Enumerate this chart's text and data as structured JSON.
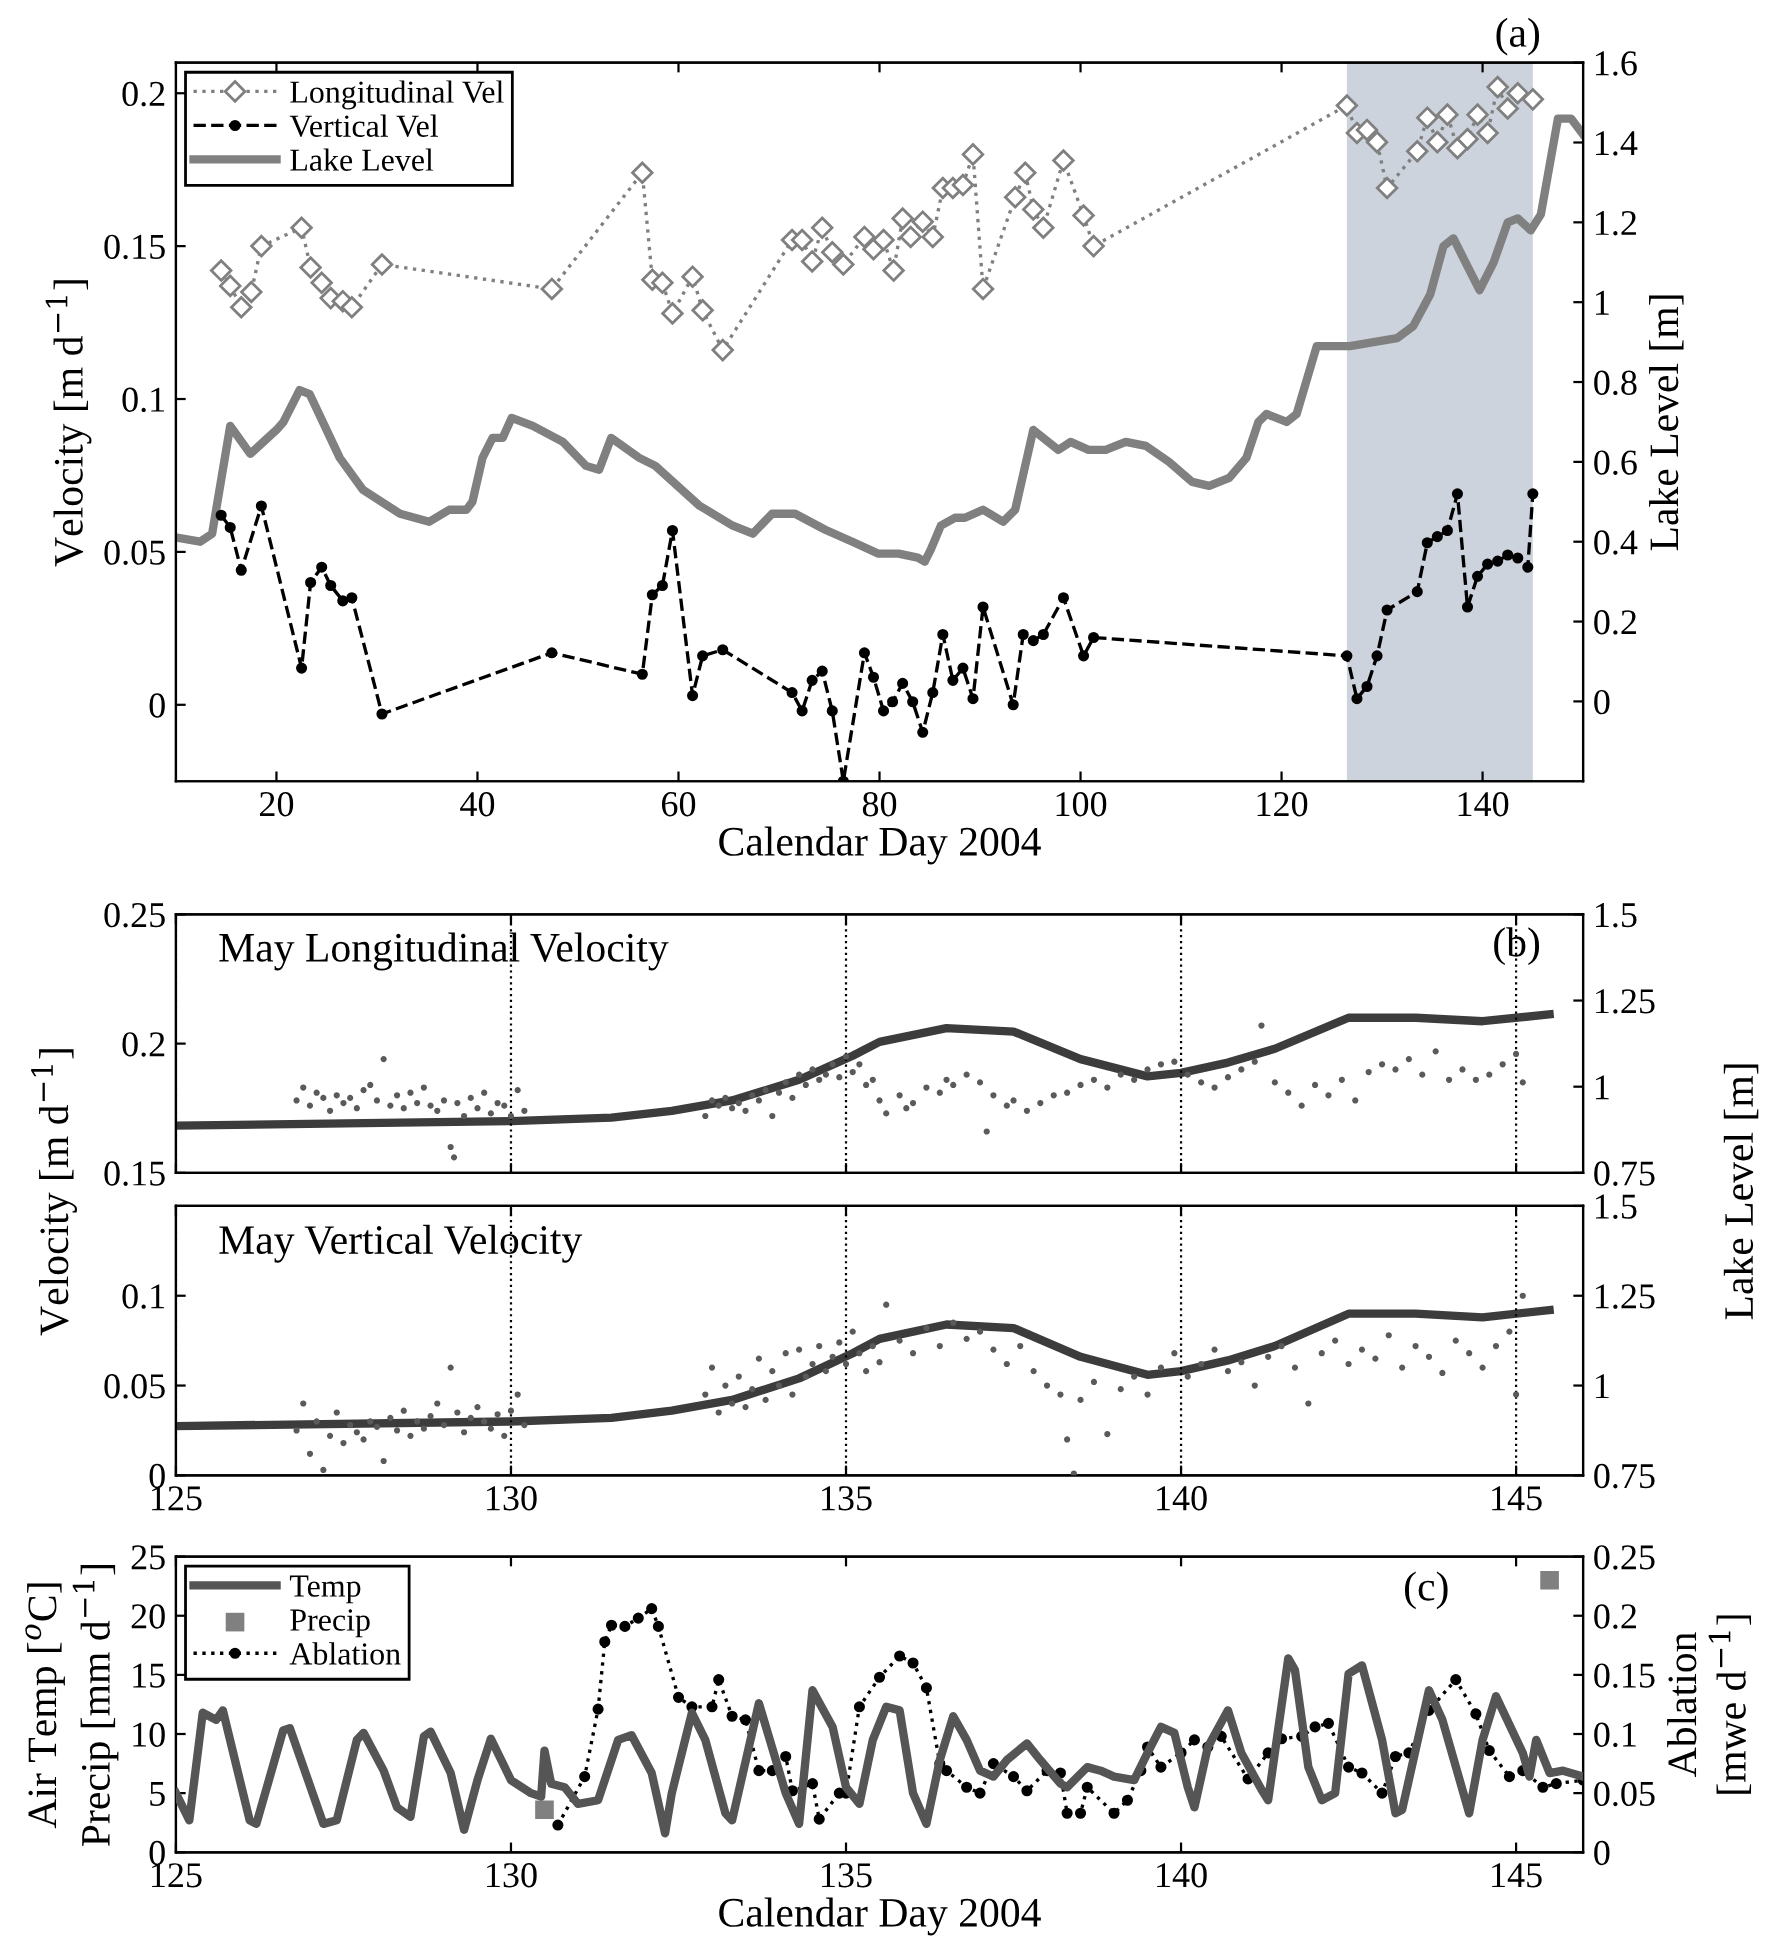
{
  "chart_data": [
    {
      "type": "line",
      "xlabel": "Calendar Day 2004",
      "ylabel": "Velocity [m d$^{−1}$]",
      "y2label": "Lake Level [m]",
      "annotations": [
        "(a)"
      ],
      "legend": "top left",
      "grid": false,
      "xlim": [
        10,
        150
      ],
      "xticks": [
        20,
        40,
        60,
        80,
        100,
        120,
        140
      ],
      "ylim": [
        -0.025,
        0.21
      ],
      "yticks": [
        0,
        0.05,
        0.1,
        0.15,
        0.2
      ],
      "y2lim": [
        -0.2,
        1.6
      ],
      "y2ticks": [
        0,
        0.2,
        0.4,
        0.6,
        0.8,
        1,
        1.2,
        1.4,
        1.6
      ],
      "bands": [
        {
          "axis": "x",
          "from": 126.5,
          "to": 145,
          "color": "#cdd3dc"
        }
      ],
      "series": [
        {
          "name": "Longitudinal Vel",
          "color": "#808080",
          "marker": "diamond",
          "line_style": "dotted",
          "x": [
            14.5,
            15.4,
            16.5,
            17.5,
            18.5,
            22.5,
            23.4,
            24.5,
            25.4,
            26.6,
            27.5,
            30.5,
            47.4,
            56.4,
            57.4,
            58.4,
            59.4,
            61.4,
            62.4,
            64.4,
            71.3,
            72.3,
            73.3,
            74.3,
            75.3,
            76.4,
            78.5,
            79.4,
            80.4,
            81.4,
            82.3,
            83.1,
            84.3,
            85.3,
            86.3,
            87.3,
            88.3,
            89.3,
            90.3,
            93.5,
            94.5,
            95.3,
            96.3,
            98.3,
            100.3,
            101.3,
            126.5,
            127.5,
            128.5,
            129.5,
            130.5,
            133.5,
            134.5,
            135.5,
            136.5,
            137.5,
            138.5,
            139.5,
            140.5,
            141.5,
            142.5,
            143.5,
            145
          ],
          "values": [
            0.142,
            0.137,
            0.13,
            0.135,
            0.15,
            0.156,
            0.143,
            0.138,
            0.133,
            0.132,
            0.13,
            0.144,
            0.136,
            0.174,
            0.139,
            0.138,
            0.128,
            0.14,
            0.129,
            0.116,
            0.152,
            0.152,
            0.145,
            0.156,
            0.148,
            0.144,
            0.153,
            0.149,
            0.152,
            0.142,
            0.159,
            0.153,
            0.158,
            0.153,
            0.169,
            0.169,
            0.17,
            0.18,
            0.136,
            0.166,
            0.174,
            0.162,
            0.156,
            0.178,
            0.16,
            0.15,
            0.196,
            0.187,
            0.188,
            0.184,
            0.169,
            0.181,
            0.192,
            0.184,
            0.193,
            0.182,
            0.185,
            0.193,
            0.187,
            0.202,
            0.195,
            0.2,
            0.198
          ]
        },
        {
          "name": "Vertical Vel",
          "color": "#000000",
          "marker": "circle",
          "line_style": "dashed",
          "x": [
            14.5,
            15.4,
            16.5,
            18.5,
            22.5,
            23.4,
            24.5,
            25.4,
            26.6,
            27.5,
            30.5,
            47.4,
            56.4,
            57.4,
            58.4,
            59.4,
            61.4,
            62.4,
            64.4,
            71.3,
            72.3,
            73.3,
            74.3,
            75.3,
            76.4,
            78.5,
            79.4,
            80.4,
            81.3,
            82.3,
            83.3,
            84.3,
            85.3,
            86.3,
            87.3,
            88.3,
            89.3,
            90.3,
            93.3,
            94.3,
            95.3,
            96.3,
            98.3,
            100.3,
            101.3,
            126.5,
            127.5,
            128.5,
            129.5,
            130.5,
            133.5,
            134.5,
            135.5,
            136.5,
            137.5,
            138.5,
            139.5,
            140.5,
            141.5,
            142.5,
            143.5,
            144.5,
            145
          ],
          "values": [
            0.062,
            0.058,
            0.044,
            0.065,
            0.012,
            0.04,
            0.045,
            0.039,
            0.034,
            0.035,
            -0.003,
            0.017,
            0.01,
            0.036,
            0.039,
            0.057,
            0.003,
            0.016,
            0.018,
            0.004,
            -0.002,
            0.008,
            0.011,
            -0.002,
            -0.025,
            0.017,
            0.009,
            -0.002,
            0.001,
            0.007,
            0.001,
            -0.009,
            0.004,
            0.023,
            0.008,
            0.012,
            0.002,
            0.032,
            0.0,
            0.023,
            0.021,
            0.023,
            0.035,
            0.016,
            0.022,
            0.016,
            0.002,
            0.006,
            0.016,
            0.031,
            0.037,
            0.053,
            0.055,
            0.057,
            0.069,
            0.032,
            0.042,
            0.046,
            0.047,
            0.049,
            0.048,
            0.045,
            0.069
          ]
        },
        {
          "name": "Lake Level",
          "axis": "y2",
          "color": "#808080",
          "marker": "none",
          "line_style": "solid",
          "x": [
            10.1,
            12.4,
            13.6,
            15.4,
            17.4,
            20,
            20.7,
            22.3,
            23.3,
            26.3,
            28.6,
            32.3,
            35.2,
            37.2,
            38.9,
            39.5,
            40.5,
            41.5,
            42.5,
            43.4,
            45.5,
            48.5,
            50.8,
            52.1,
            53.3,
            56.1,
            57.7,
            62.1,
            65.4,
            67.4,
            69.3,
            71.6,
            74.6,
            77.3,
            79.9,
            81.9,
            83.8,
            84.5,
            85.1,
            86.1,
            87.5,
            88.5,
            90.3,
            92.3,
            93.5,
            95.3,
            97.8,
            99,
            100.8,
            102.5,
            104.5,
            106.5,
            108.8,
            111.1,
            112.8,
            114.8,
            116.5,
            117.7,
            118.5,
            120.5,
            121.5,
            123.5,
            126.8,
            131.5,
            133.1,
            134.8,
            136.1,
            137.1,
            138.1,
            139.7,
            141.1,
            142.5,
            143.5,
            144.8,
            145.8,
            147.5,
            148.8,
            150
          ],
          "values": [
            0.41,
            0.4,
            0.42,
            0.69,
            0.62,
            0.68,
            0.7,
            0.78,
            0.77,
            0.61,
            0.53,
            0.47,
            0.45,
            0.48,
            0.48,
            0.5,
            0.61,
            0.66,
            0.66,
            0.71,
            0.69,
            0.65,
            0.59,
            0.58,
            0.66,
            0.61,
            0.59,
            0.49,
            0.44,
            0.42,
            0.47,
            0.47,
            0.43,
            0.4,
            0.37,
            0.37,
            0.36,
            0.35,
            0.38,
            0.44,
            0.46,
            0.46,
            0.48,
            0.45,
            0.48,
            0.68,
            0.63,
            0.65,
            0.63,
            0.63,
            0.65,
            0.64,
            0.6,
            0.55,
            0.54,
            0.56,
            0.61,
            0.7,
            0.72,
            0.7,
            0.72,
            0.89,
            0.89,
            0.91,
            0.94,
            1.02,
            1.14,
            1.16,
            1.11,
            1.03,
            1.1,
            1.2,
            1.21,
            1.18,
            1.22,
            1.46,
            1.46,
            1.42
          ]
        }
      ]
    },
    {
      "type": "line",
      "title": "May Longitudinal Velocity",
      "ylabel": "Velocity [m d$^{−1}$]",
      "y2label": "Lake Level [m]",
      "annotations": [
        "(b)"
      ],
      "grid": "x",
      "tick_labels": "y",
      "xlim": [
        125,
        146
      ],
      "xticks": [
        125,
        130,
        135,
        140,
        145
      ],
      "ylim": [
        0.15,
        0.25
      ],
      "yticks": [
        0.15,
        0.2,
        0.25
      ],
      "y2lim": [
        0.75,
        1.5
      ],
      "y2ticks": [
        0.75,
        1,
        1.25,
        1.5
      ],
      "series": [
        {
          "type": "scatter",
          "color": "#5a5a5a",
          "marker": "circle",
          "x": [
            126.8,
            126.9,
            127.0,
            127.1,
            127.2,
            127.3,
            127.4,
            127.5,
            127.6,
            127.7,
            127.8,
            127.9,
            128.0,
            128.1,
            128.2,
            128.3,
            128.4,
            128.5,
            128.6,
            128.7,
            128.8,
            128.9,
            129.0,
            129.1,
            129.15,
            129.2,
            129.3,
            129.4,
            129.5,
            129.6,
            129.7,
            129.8,
            129.9,
            130.0,
            130.1,
            130.2,
            132.9,
            133.0,
            133.1,
            133.2,
            133.3,
            133.4,
            133.5,
            133.6,
            133.7,
            133.8,
            133.9,
            134.0,
            134.1,
            134.2,
            134.3,
            134.4,
            134.5,
            134.6,
            134.7,
            134.8,
            134.9,
            135.0,
            135.1,
            135.2,
            135.3,
            135.4,
            135.5,
            135.6,
            135.8,
            135.9,
            136.0,
            136.2,
            136.4,
            136.5,
            136.6,
            136.8,
            137.0,
            137.1,
            137.2,
            137.4,
            137.5,
            137.7,
            137.9,
            138.1,
            138.3,
            138.5,
            138.7,
            138.9,
            139.1,
            139.3,
            139.5,
            139.7,
            139.9,
            140.1,
            140.3,
            140.5,
            140.7,
            140.9,
            141.1,
            141.2,
            141.4,
            141.6,
            141.8,
            142.0,
            142.2,
            142.4,
            142.6,
            142.8,
            143.0,
            143.2,
            143.4,
            143.6,
            143.8,
            144.0,
            144.2,
            144.4,
            144.6,
            144.8,
            145.0,
            145.1
          ],
          "values": [
            0.178,
            0.183,
            0.176,
            0.181,
            0.179,
            0.174,
            0.18,
            0.177,
            0.179,
            0.175,
            0.182,
            0.184,
            0.178,
            0.194,
            0.176,
            0.18,
            0.175,
            0.181,
            0.177,
            0.183,
            0.176,
            0.174,
            0.178,
            0.16,
            0.156,
            0.177,
            0.172,
            0.179,
            0.175,
            0.181,
            0.173,
            0.177,
            0.176,
            0.172,
            0.182,
            0.174,
            0.172,
            0.178,
            0.176,
            0.179,
            0.175,
            0.177,
            0.174,
            0.18,
            0.178,
            0.182,
            0.172,
            0.181,
            0.185,
            0.179,
            0.188,
            0.184,
            0.19,
            0.186,
            0.188,
            0.192,
            0.187,
            0.195,
            0.189,
            0.192,
            0.184,
            0.186,
            0.178,
            0.173,
            0.18,
            0.175,
            0.177,
            0.183,
            0.181,
            0.186,
            0.184,
            0.188,
            0.185,
            0.166,
            0.18,
            0.176,
            0.178,
            0.174,
            0.177,
            0.18,
            0.181,
            0.184,
            0.186,
            0.183,
            0.188,
            0.186,
            0.19,
            0.192,
            0.193,
            0.188,
            0.185,
            0.183,
            0.187,
            0.19,
            0.193,
            0.207,
            0.185,
            0.181,
            0.176,
            0.184,
            0.18,
            0.186,
            0.178,
            0.189,
            0.192,
            0.19,
            0.194,
            0.188,
            0.197,
            0.186,
            0.19,
            0.186,
            0.188,
            0.192,
            0.196,
            0.185
          ]
        },
        {
          "type": "line",
          "axis": "y2",
          "color": "#3c3c3c",
          "marker": "none",
          "line_style": "solid",
          "x": [
            125,
            130,
            131.5,
            132.4,
            133.3,
            134.3,
            135.1,
            135.5,
            136.5,
            137.5,
            138.5,
            139.5,
            140,
            140.7,
            141.4,
            142.5,
            143.5,
            144.5,
            145.5
          ],
          "values": [
            0.887,
            0.9,
            0.91,
            0.93,
            0.96,
            1.02,
            1.09,
            1.13,
            1.17,
            1.16,
            1.08,
            1.03,
            1.04,
            1.07,
            1.11,
            1.2,
            1.2,
            1.19,
            1.21
          ]
        }
      ]
    },
    {
      "type": "line",
      "title": "May Vertical Velocity",
      "grid": "x",
      "xlim": [
        125,
        146
      ],
      "xticks": [
        125,
        130,
        135,
        140,
        145
      ],
      "ylim": [
        0,
        0.15
      ],
      "yticks": [
        0,
        0.05,
        0.1
      ],
      "y2lim": [
        0.75,
        1.5
      ],
      "y2ticks": [
        0.75,
        1,
        1.25,
        1.5
      ],
      "series": [
        {
          "type": "scatter",
          "color": "#5a5a5a",
          "marker": "circle",
          "x": [
            126.8,
            126.9,
            127.0,
            127.1,
            127.2,
            127.3,
            127.4,
            127.5,
            127.6,
            127.7,
            127.8,
            127.9,
            128.0,
            128.1,
            128.2,
            128.3,
            128.4,
            128.5,
            128.6,
            128.7,
            128.8,
            128.9,
            129.0,
            129.1,
            129.2,
            129.3,
            129.4,
            129.5,
            129.6,
            129.7,
            129.8,
            129.9,
            130.0,
            130.1,
            130.2,
            132.9,
            133.0,
            133.1,
            133.2,
            133.3,
            133.4,
            133.5,
            133.6,
            133.7,
            133.8,
            133.9,
            134.0,
            134.1,
            134.2,
            134.3,
            134.4,
            134.5,
            134.6,
            134.7,
            134.8,
            134.9,
            135.0,
            135.1,
            135.2,
            135.3,
            135.4,
            135.5,
            135.6,
            135.8,
            136.0,
            136.2,
            136.4,
            136.6,
            136.8,
            137.0,
            137.2,
            137.4,
            137.6,
            137.8,
            138.0,
            138.2,
            138.3,
            138.4,
            138.5,
            138.7,
            138.9,
            139.1,
            139.3,
            139.5,
            139.7,
            139.9,
            140.1,
            140.3,
            140.5,
            140.7,
            140.9,
            141.1,
            141.3,
            141.5,
            141.7,
            141.9,
            142.1,
            142.3,
            142.5,
            142.7,
            142.9,
            143.1,
            143.3,
            143.5,
            143.7,
            143.9,
            144.1,
            144.3,
            144.5,
            144.7,
            144.9,
            145.0,
            145.1
          ],
          "values": [
            0.025,
            0.04,
            0.012,
            0.03,
            0.003,
            0.022,
            0.035,
            0.018,
            0.028,
            0.024,
            0.02,
            0.03,
            0.027,
            0.008,
            0.032,
            0.025,
            0.036,
            0.022,
            0.03,
            0.026,
            0.033,
            0.04,
            0.028,
            0.06,
            0.035,
            0.024,
            0.032,
            0.038,
            0.03,
            0.026,
            0.034,
            0.022,
            0.036,
            0.045,
            0.028,
            0.045,
            0.06,
            0.035,
            0.05,
            0.04,
            0.055,
            0.038,
            0.048,
            0.065,
            0.042,
            0.058,
            0.05,
            0.068,
            0.045,
            0.07,
            0.055,
            0.062,
            0.072,
            0.058,
            0.066,
            0.074,
            0.062,
            0.08,
            0.068,
            0.058,
            0.072,
            0.063,
            0.095,
            0.075,
            0.068,
            0.082,
            0.072,
            0.085,
            0.076,
            0.08,
            0.07,
            0.062,
            0.072,
            0.058,
            0.05,
            0.045,
            0.02,
            0.001,
            0.042,
            0.052,
            0.023,
            0.048,
            0.055,
            0.045,
            0.06,
            0.068,
            0.055,
            0.062,
            0.07,
            0.058,
            0.063,
            0.05,
            0.066,
            0.072,
            0.06,
            0.04,
            0.068,
            0.075,
            0.062,
            0.07,
            0.065,
            0.078,
            0.06,
            0.072,
            0.066,
            0.057,
            0.075,
            0.068,
            0.06,
            0.072,
            0.08,
            0.045,
            0.1
          ]
        },
        {
          "type": "line",
          "axis": "y2",
          "color": "#3c3c3c",
          "marker": "none",
          "line_style": "solid",
          "x": [
            125,
            130,
            131.5,
            132.4,
            133.3,
            134.3,
            135.1,
            135.5,
            136.5,
            137.5,
            138.5,
            139.5,
            140,
            140.7,
            141.4,
            142.5,
            143.5,
            144.5,
            145.5
          ],
          "values": [
            0.887,
            0.9,
            0.91,
            0.93,
            0.96,
            1.02,
            1.09,
            1.13,
            1.17,
            1.16,
            1.08,
            1.03,
            1.04,
            1.07,
            1.11,
            1.2,
            1.2,
            1.19,
            1.21
          ]
        }
      ]
    },
    {
      "type": "line",
      "xlabel": "Calendar Day 2004",
      "ylabel": "Air Temp [$^{o}$C]\nPrecip [mm d$^{−1}$]",
      "y2label": "Ablation\n[mwe d$^{−1}$]",
      "annotations": [
        "(c)"
      ],
      "legend": "top left",
      "grid": false,
      "xlim": [
        125,
        146
      ],
      "xticks": [
        125,
        130,
        135,
        140,
        145
      ],
      "ylim": [
        0,
        25
      ],
      "yticks": [
        0,
        5,
        10,
        15,
        20,
        25
      ],
      "y2lim": [
        0,
        0.25
      ],
      "y2ticks": [
        0,
        0.05,
        0.1,
        0.15,
        0.2,
        0.25
      ],
      "series": [
        {
          "name": "Temp",
          "color": "#555555",
          "marker": "none",
          "line_style": "solid",
          "x": [
            125,
            125.2,
            125.4,
            125.6,
            125.7,
            126.1,
            126.2,
            126.6,
            126.7,
            127.2,
            127.4,
            127.7,
            127.8,
            128.1,
            128.3,
            128.5,
            128.7,
            128.8,
            129.1,
            129.3,
            129.5,
            129.7,
            130.0,
            130.3,
            130.45,
            130.5,
            130.6,
            130.8,
            131.0,
            131.3,
            131.6,
            131.8,
            132.1,
            132.3,
            132.4,
            132.7,
            132.9,
            133.2,
            133.3,
            133.7,
            134.1,
            134.3,
            134.5,
            134.8,
            135.0,
            135.2,
            135.4,
            135.6,
            135.8,
            136.0,
            136.2,
            136.4,
            136.6,
            136.8,
            137.0,
            137.2,
            137.4,
            137.7,
            137.9,
            138.2,
            138.3,
            138.6,
            138.8,
            139.0,
            139.3,
            139.5,
            139.7,
            139.9,
            140.1,
            140.2,
            140.4,
            140.7,
            140.9,
            141.2,
            141.3,
            141.6,
            141.7,
            141.9,
            142.1,
            142.3,
            142.5,
            142.7,
            143.0,
            143.2,
            143.3,
            143.7,
            143.9,
            144.3,
            144.5,
            144.7,
            145.1,
            145.2,
            145.3,
            145.5,
            145.7,
            146
          ],
          "values": [
            5.0,
            2.7,
            11.8,
            11.2,
            12.0,
            2.7,
            2.4,
            10.3,
            10.5,
            2.4,
            2.7,
            9.5,
            10.1,
            6.9,
            3.8,
            3.0,
            9.8,
            10.2,
            6.7,
            1.9,
            6.1,
            9.6,
            6.1,
            5.0,
            4.7,
            8.6,
            5.8,
            5.5,
            4.1,
            4.4,
            9.5,
            9.9,
            6.7,
            1.6,
            5.0,
            11.8,
            9.5,
            3.3,
            2.7,
            12.6,
            5.0,
            2.4,
            13.7,
            10.6,
            5.5,
            4.1,
            9.5,
            12.3,
            12.0,
            5.0,
            2.4,
            7.8,
            11.5,
            9.5,
            6.9,
            6.4,
            7.8,
            9.2,
            7.8,
            5.8,
            5.5,
            7.2,
            6.9,
            6.4,
            6.1,
            8.4,
            10.6,
            10.1,
            5.5,
            3.8,
            8.9,
            12.0,
            8.4,
            5.3,
            4.4,
            16.4,
            15.4,
            7.2,
            4.4,
            5.0,
            15.1,
            15.8,
            9.5,
            3.3,
            3.6,
            13.7,
            11.2,
            3.3,
            9.5,
            13.2,
            8.4,
            6.4,
            9.5,
            6.7,
            6.9,
            6.4
          ]
        },
        {
          "name": "Precip",
          "type": "scatter",
          "color": "#808080",
          "marker": "square",
          "x": [
            130.5,
            145.5
          ],
          "values": [
            3.6,
            23
          ]
        },
        {
          "name": "Ablation",
          "axis": "y2",
          "color": "#000000",
          "marker": "circle",
          "line_style": "dotted",
          "x": [
            130.7,
            131.1,
            131.3,
            131.4,
            131.5,
            131.7,
            131.9,
            132.1,
            132.2,
            132.5,
            132.7,
            133.0,
            133.1,
            133.3,
            133.5,
            133.7,
            133.9,
            134.1,
            134.2,
            134.5,
            134.6,
            134.9,
            135.0,
            135.2,
            135.5,
            135.8,
            136.0,
            136.2,
            136.4,
            136.5,
            136.8,
            137.0,
            137.2,
            137.5,
            137.7,
            138.0,
            138.2,
            138.3,
            138.5,
            138.6,
            139.0,
            139.2,
            139.4,
            139.5,
            139.7,
            140.0,
            140.2,
            140.4,
            140.6,
            141.0,
            141.3,
            141.5,
            141.8,
            142.0,
            142.2,
            142.5,
            142.7,
            143.0,
            143.2,
            143.4,
            143.7,
            144.1,
            144.4,
            144.6,
            144.9,
            145.1,
            145.4,
            145.6,
            146.0
          ],
          "values": [
            0.023,
            0.064,
            0.121,
            0.178,
            0.192,
            0.191,
            0.198,
            0.206,
            0.191,
            0.131,
            0.123,
            0.123,
            0.146,
            0.115,
            0.112,
            0.069,
            0.069,
            0.081,
            0.052,
            0.058,
            0.028,
            0.05,
            0.05,
            0.123,
            0.148,
            0.166,
            0.16,
            0.139,
            0.075,
            0.069,
            0.055,
            0.05,
            0.075,
            0.064,
            0.052,
            0.069,
            0.067,
            0.033,
            0.033,
            0.055,
            0.033,
            0.044,
            0.069,
            0.089,
            0.072,
            0.084,
            0.095,
            0.089,
            0.098,
            0.062,
            0.084,
            0.096,
            0.098,
            0.106,
            0.109,
            0.072,
            0.067,
            0.05,
            0.081,
            0.084,
            0.12,
            0.146,
            0.117,
            0.086,
            0.064,
            0.069,
            0.055,
            0.058,
            0.061
          ]
        }
      ]
    }
  ]
}
